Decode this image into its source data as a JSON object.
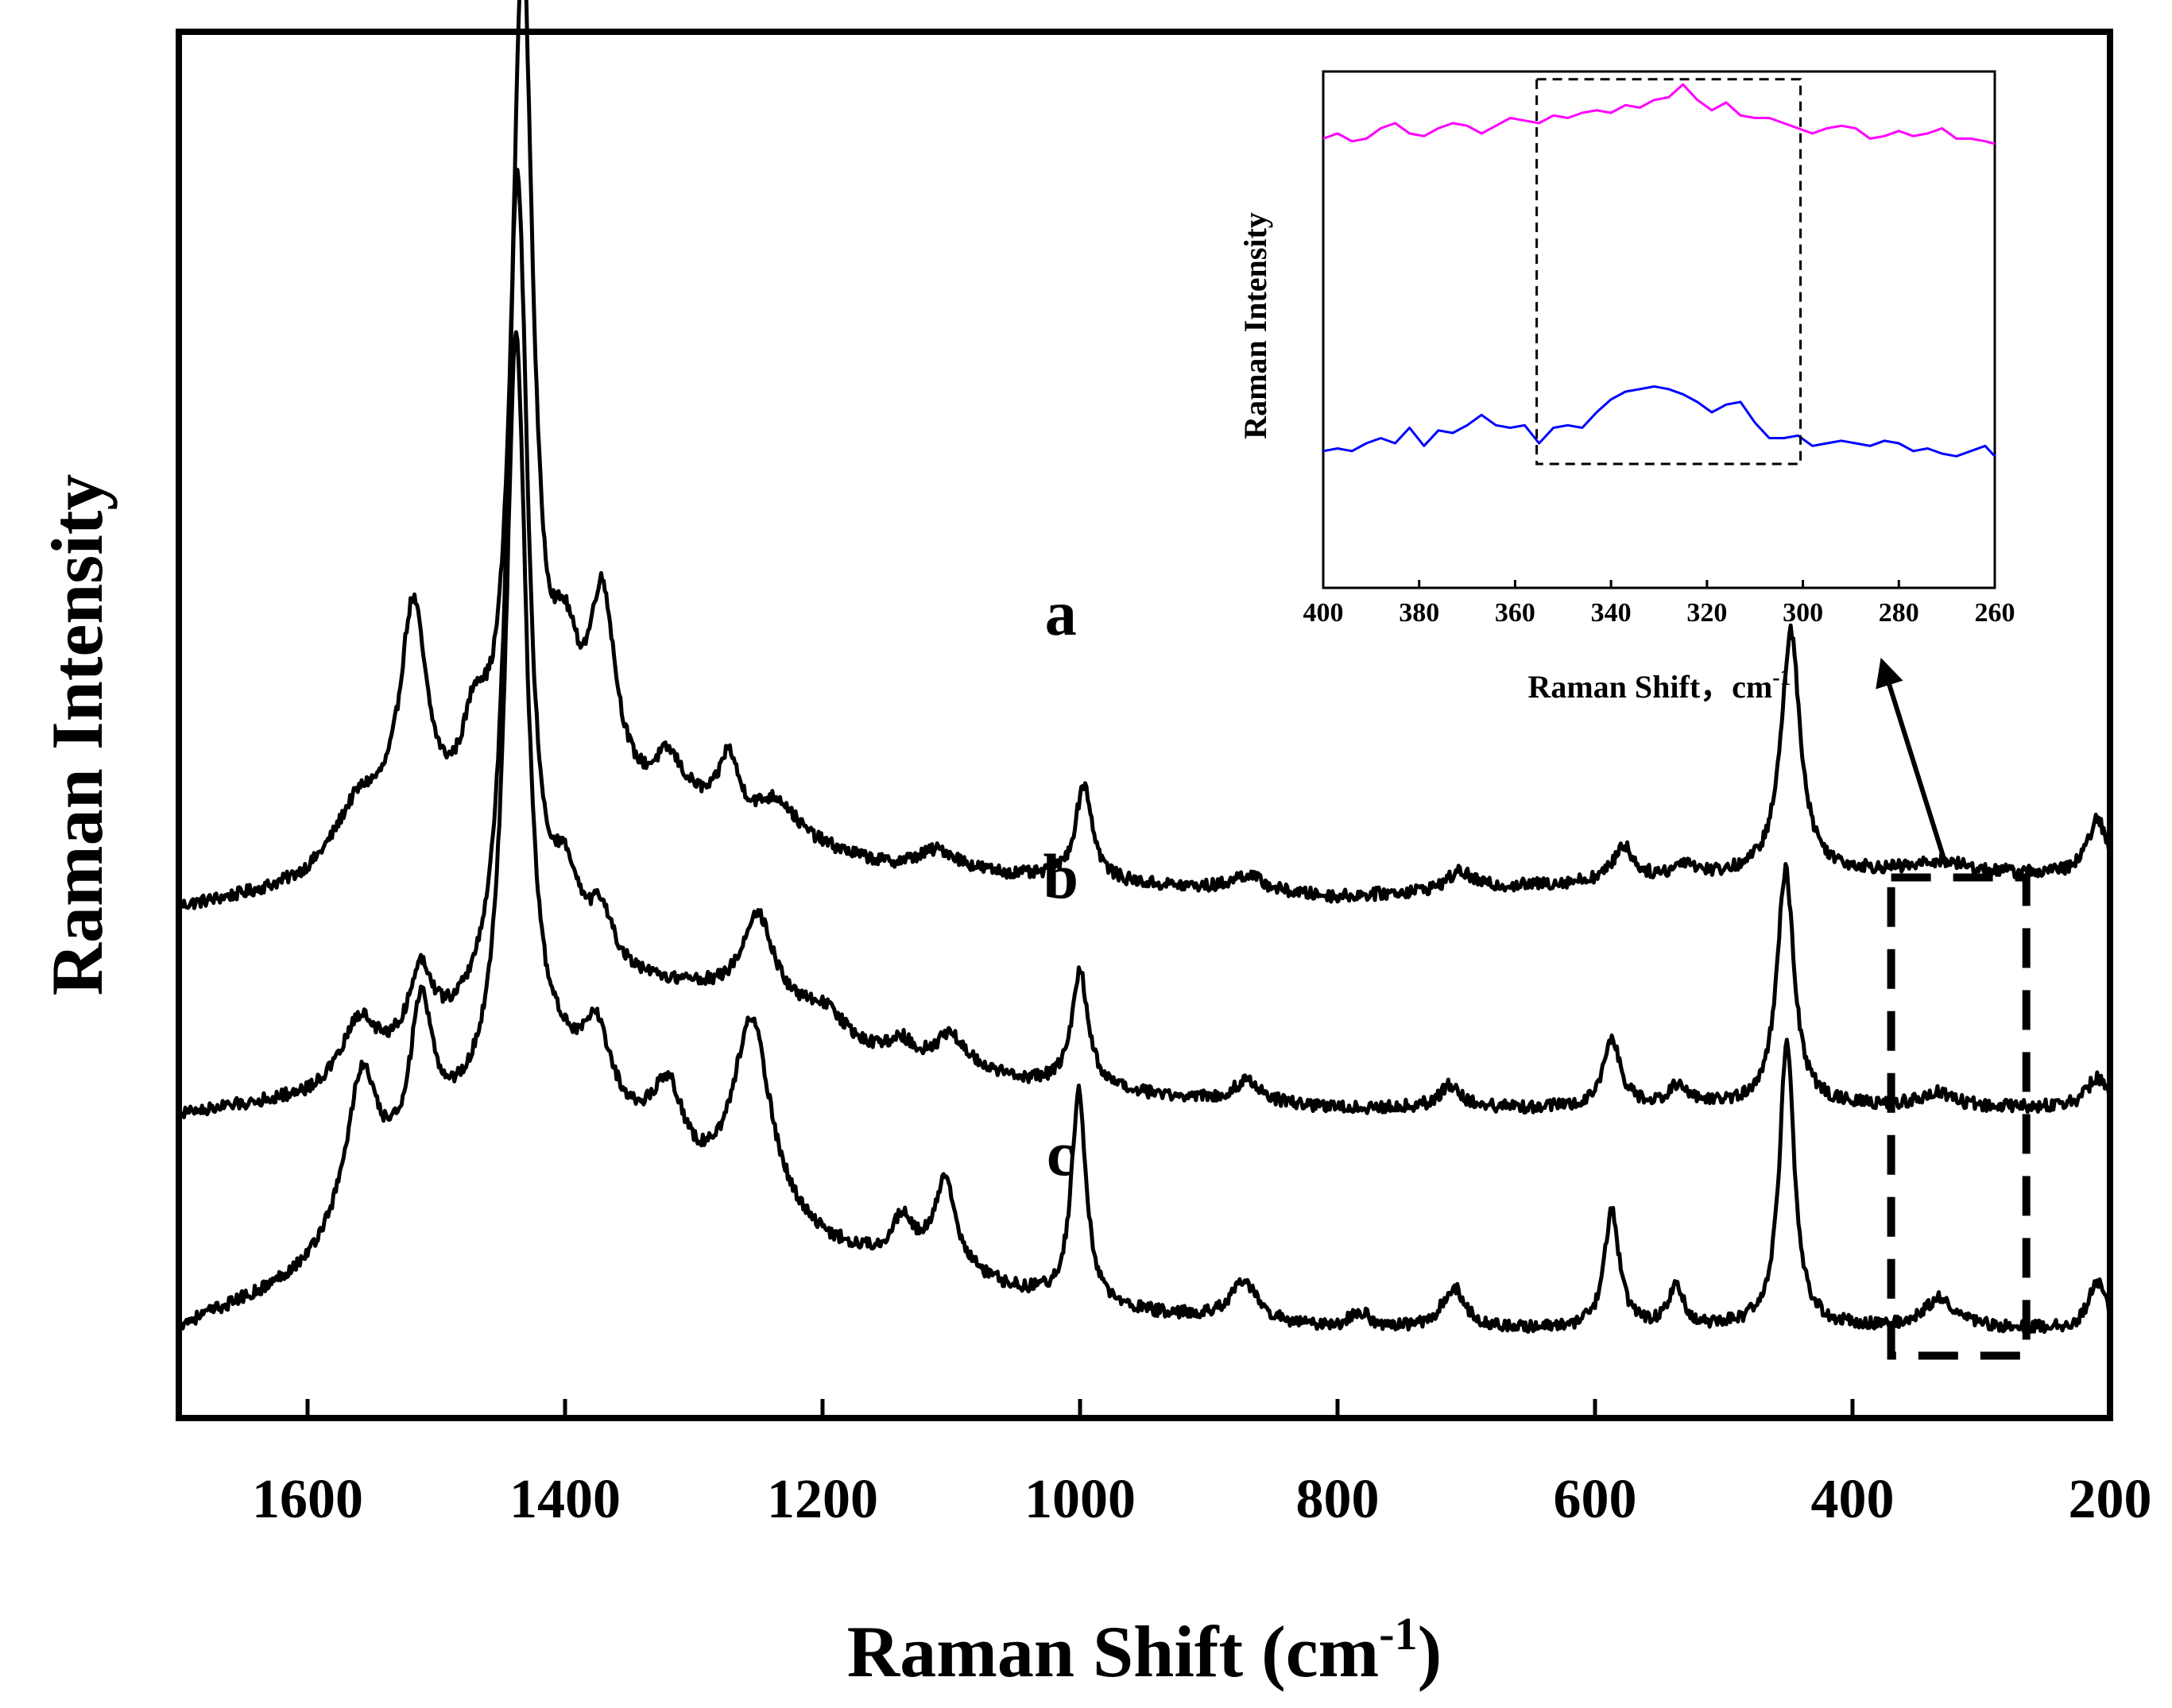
{
  "chart_data": [
    {
      "id": "main",
      "type": "line",
      "title": "",
      "xlabel": "Raman Shift (cm",
      "xlabel_sup": "-1",
      "xlabel_end": ")",
      "ylabel": "Raman Intensity",
      "xlim": [
        1700,
        200
      ],
      "x_reversed": true,
      "ylim": [
        0,
        100
      ],
      "y_ticks_shown": false,
      "grid": false,
      "x_ticks": [
        1600,
        1400,
        1200,
        1000,
        800,
        600,
        400,
        200
      ],
      "x_tick_labels": [
        "1600",
        "1400",
        "1200",
        "1000",
        "800",
        "600",
        "400",
        "200"
      ],
      "line_color": "#000000",
      "series": [
        {
          "name": "a",
          "baseline": [
            [
              1700,
              36.6
            ],
            [
              1600,
              37.8
            ],
            [
              1500,
              40.5
            ],
            [
              1300,
              43.0
            ],
            [
              1150,
              39.5
            ],
            [
              1000,
              38.6
            ],
            [
              800,
              37.5
            ],
            [
              600,
              38.6
            ],
            [
              450,
              39.2
            ],
            [
              360,
              39.4
            ],
            [
              200,
              39.1
            ]
          ],
          "peaks": [
            {
              "center": 1560,
              "height": 4.5,
              "width": 25
            },
            {
              "center": 1518,
              "height": 16.5,
              "width": 13
            },
            {
              "center": 1470,
              "height": 6.0,
              "width": 12
            },
            {
              "center": 1433,
              "height": 62.0,
              "width": 10
            },
            {
              "center": 1400,
              "height": 9.0,
              "width": 14
            },
            {
              "center": 1371,
              "height": 14.5,
              "width": 13
            },
            {
              "center": 1320,
              "height": 3.5,
              "width": 14
            },
            {
              "center": 1273,
              "height": 4.5,
              "width": 9
            },
            {
              "center": 1235,
              "height": 2.5,
              "width": 18
            },
            {
              "center": 1110,
              "height": 1.5,
              "width": 20
            },
            {
              "center": 997,
              "height": 7.0,
              "width": 8
            },
            {
              "center": 870,
              "height": 1.2,
              "width": 15
            },
            {
              "center": 705,
              "height": 1.3,
              "width": 12
            },
            {
              "center": 578,
              "height": 2.5,
              "width": 9
            },
            {
              "center": 530,
              "height": 1.0,
              "width": 10
            },
            {
              "center": 448,
              "height": 17.5,
              "width": 9
            },
            {
              "center": 330,
              "height": 0.8,
              "width": 18
            },
            {
              "center": 210,
              "height": 4.0,
              "width": 9
            }
          ]
        },
        {
          "name": "b",
          "baseline": [
            [
              1700,
              21.8
            ],
            [
              1600,
              23.0
            ],
            [
              1500,
              26.5
            ],
            [
              1400,
              31.0
            ],
            [
              1300,
              30.5
            ],
            [
              1150,
              25.5
            ],
            [
              1000,
              23.5
            ],
            [
              800,
              22.3
            ],
            [
              600,
              22.3
            ],
            [
              450,
              22.5
            ],
            [
              200,
              22.3
            ]
          ],
          "peaks": [
            {
              "center": 1560,
              "height": 4.0,
              "width": 15
            },
            {
              "center": 1512,
              "height": 5.5,
              "width": 11
            },
            {
              "center": 1437,
              "height": 59.5,
              "width": 10
            },
            {
              "center": 1400,
              "height": 5.5,
              "width": 14
            },
            {
              "center": 1372,
              "height": 4.0,
              "width": 12
            },
            {
              "center": 1250,
              "height": 7.0,
              "width": 16
            },
            {
              "center": 1200,
              "height": 2.0,
              "width": 20
            },
            {
              "center": 1140,
              "height": 1.5,
              "width": 12
            },
            {
              "center": 1100,
              "height": 2.5,
              "width": 15
            },
            {
              "center": 1000,
              "height": 8.5,
              "width": 8
            },
            {
              "center": 870,
              "height": 1.6,
              "width": 12
            },
            {
              "center": 713,
              "height": 1.6,
              "width": 10
            },
            {
              "center": 587,
              "height": 5.0,
              "width": 8
            },
            {
              "center": 535,
              "height": 1.5,
              "width": 9
            },
            {
              "center": 452,
              "height": 17.0,
              "width": 8
            },
            {
              "center": 335,
              "height": 1.0,
              "width": 15
            },
            {
              "center": 210,
              "height": 2.2,
              "width": 10
            }
          ]
        },
        {
          "name": "c",
          "baseline": [
            [
              1700,
              6.5
            ],
            [
              1630,
              9.0
            ],
            [
              1600,
              10.5
            ],
            [
              1500,
              20.0
            ],
            [
              1400,
              24.0
            ],
            [
              1300,
              16.0
            ],
            [
              1200,
              12.0
            ],
            [
              1100,
              10.0
            ],
            [
              1000,
              7.8
            ],
            [
              800,
              6.3
            ],
            [
              600,
              6.3
            ],
            [
              450,
              6.5
            ],
            [
              200,
              6.3
            ]
          ],
          "peaks": [
            {
              "center": 1558,
              "height": 10.0,
              "width": 14
            },
            {
              "center": 1512,
              "height": 10.0,
              "width": 10
            },
            {
              "center": 1438,
              "height": 55.0,
              "width": 10
            },
            {
              "center": 1375,
              "height": 5.0,
              "width": 12
            },
            {
              "center": 1320,
              "height": 5.5,
              "width": 15
            },
            {
              "center": 1255,
              "height": 14.0,
              "width": 18
            },
            {
              "center": 1138,
              "height": 3.0,
              "width": 10
            },
            {
              "center": 1105,
              "height": 6.5,
              "width": 11
            },
            {
              "center": 1001,
              "height": 15.5,
              "width": 7
            },
            {
              "center": 873,
              "height": 2.8,
              "width": 13
            },
            {
              "center": 783,
              "height": 1.2,
              "width": 10
            },
            {
              "center": 710,
              "height": 3.0,
              "width": 11
            },
            {
              "center": 587,
              "height": 8.5,
              "width": 7
            },
            {
              "center": 537,
              "height": 3.0,
              "width": 7
            },
            {
              "center": 451,
              "height": 20.5,
              "width": 7
            },
            {
              "center": 332,
              "height": 2.2,
              "width": 15
            },
            {
              "center": 210,
              "height": 3.5,
              "width": 8
            }
          ]
        }
      ],
      "series_labels": [
        {
          "text": "a",
          "x": 1015,
          "y": 56.5
        },
        {
          "text": "b",
          "x": 1015,
          "y": 37.5
        },
        {
          "text": "c",
          "x": 1015,
          "y": 17.5
        }
      ],
      "annotation_box": {
        "x_range": [
          370,
          265
        ],
        "y_range": [
          4.5,
          39.0
        ],
        "style": "dashed"
      }
    },
    {
      "id": "inset",
      "type": "line",
      "xlabel": "Raman Shift，cm",
      "xlabel_sup": "-1",
      "ylabel": "Raman Intensity",
      "xlim": [
        400,
        260
      ],
      "x_reversed": true,
      "ylim": [
        0,
        100
      ],
      "y_ticks_shown": false,
      "x_ticks": [
        400,
        380,
        360,
        340,
        320,
        300,
        280,
        260
      ],
      "x_tick_labels": [
        "400",
        "380",
        "360",
        "340",
        "320",
        "300",
        "280",
        "260"
      ],
      "series": [
        {
          "name": "upper",
          "color": "#ff00ff",
          "values": [
            [
              400,
              87.0
            ],
            [
              397,
              88.0
            ],
            [
              394,
              86.5
            ],
            [
              391,
              87.0
            ],
            [
              388,
              89.0
            ],
            [
              385,
              90.0
            ],
            [
              382,
              88.0
            ],
            [
              379,
              87.5
            ],
            [
              376,
              89.0
            ],
            [
              373,
              90.0
            ],
            [
              370,
              89.5
            ],
            [
              367,
              88.0
            ],
            [
              364,
              89.5
            ],
            [
              361,
              91.0
            ],
            [
              358,
              90.5
            ],
            [
              355,
              90.0
            ],
            [
              352,
              91.5
            ],
            [
              349,
              91.0
            ],
            [
              346,
              92.0
            ],
            [
              343,
              92.5
            ],
            [
              340,
              92.0
            ],
            [
              337,
              93.5
            ],
            [
              334,
              93.0
            ],
            [
              331,
              94.5
            ],
            [
              328,
              95.0
            ],
            [
              325,
              97.5
            ],
            [
              322,
              94.5
            ],
            [
              319,
              92.5
            ],
            [
              316,
              94.0
            ],
            [
              313,
              91.5
            ],
            [
              310,
              91.0
            ],
            [
              307,
              91.0
            ],
            [
              304,
              90.0
            ],
            [
              301,
              89.0
            ],
            [
              298,
              88.0
            ],
            [
              295,
              89.0
            ],
            [
              292,
              89.5
            ],
            [
              289,
              89.0
            ],
            [
              286,
              87.0
            ],
            [
              283,
              87.5
            ],
            [
              280,
              88.5
            ],
            [
              277,
              87.5
            ],
            [
              274,
              88.0
            ],
            [
              271,
              89.0
            ],
            [
              268,
              87.0
            ],
            [
              265,
              87.0
            ],
            [
              262,
              86.5
            ],
            [
              260,
              86.0
            ]
          ]
        },
        {
          "name": "lower",
          "color": "#0000ff",
          "values": [
            [
              400,
              26.5
            ],
            [
              397,
              27.0
            ],
            [
              394,
              26.5
            ],
            [
              391,
              28.0
            ],
            [
              388,
              29.0
            ],
            [
              385,
              28.0
            ],
            [
              382,
              31.0
            ],
            [
              379,
              27.5
            ],
            [
              376,
              30.5
            ],
            [
              373,
              30.0
            ],
            [
              370,
              31.5
            ],
            [
              367,
              33.5
            ],
            [
              364,
              31.5
            ],
            [
              361,
              31.0
            ],
            [
              358,
              31.5
            ],
            [
              355,
              28.0
            ],
            [
              352,
              31.0
            ],
            [
              349,
              31.5
            ],
            [
              346,
              31.0
            ],
            [
              343,
              34.0
            ],
            [
              340,
              36.5
            ],
            [
              337,
              38.0
            ],
            [
              334,
              38.5
            ],
            [
              331,
              39.0
            ],
            [
              328,
              38.5
            ],
            [
              325,
              37.5
            ],
            [
              322,
              36.0
            ],
            [
              319,
              34.0
            ],
            [
              316,
              35.5
            ],
            [
              313,
              36.0
            ],
            [
              310,
              32.0
            ],
            [
              307,
              29.0
            ],
            [
              304,
              29.0
            ],
            [
              301,
              29.5
            ],
            [
              298,
              27.5
            ],
            [
              295,
              28.0
            ],
            [
              292,
              28.5
            ],
            [
              289,
              28.0
            ],
            [
              286,
              27.5
            ],
            [
              283,
              28.5
            ],
            [
              280,
              28.0
            ],
            [
              277,
              26.5
            ],
            [
              274,
              27.0
            ],
            [
              271,
              26.0
            ],
            [
              268,
              25.5
            ],
            [
              265,
              26.5
            ],
            [
              262,
              27.5
            ],
            [
              260,
              25.5
            ]
          ]
        }
      ],
      "annotation_box": {
        "x_range": [
          355.5,
          300.5
        ],
        "y_range": [
          24.0,
          98.5
        ],
        "style": "dashed"
      }
    }
  ]
}
